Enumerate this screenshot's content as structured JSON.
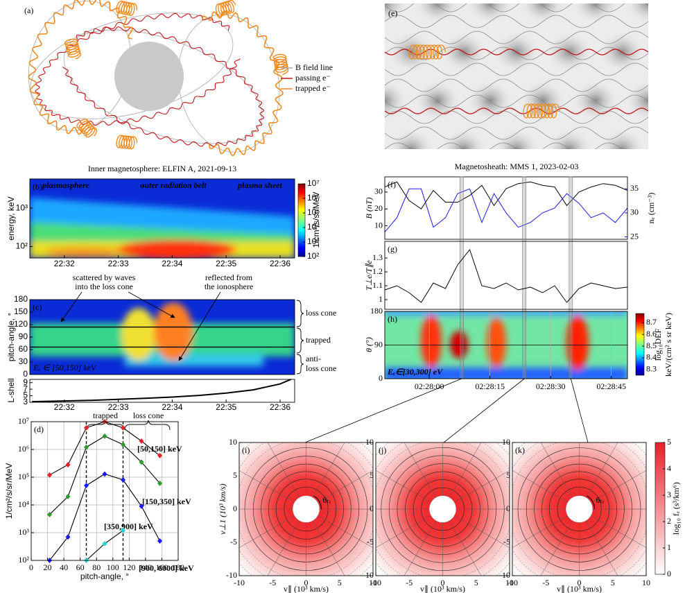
{
  "diagrams": [
    {
      "label": "(a)",
      "legend": [
        "B field line",
        "passing e⁻",
        "trapped e⁻"
      ],
      "legend_colors": [
        "#aaaaaa",
        "#c0161c",
        "#f08a1c"
      ]
    },
    {
      "label": "(e)"
    }
  ],
  "chart_data": [
    {
      "type": "heatmap",
      "label": "(b)",
      "title": "Inner magnetosphere: ELFIN A, 2021-09-13",
      "annotations": [
        "plasmasphere",
        "outer radiation belt",
        "plasma sheet"
      ],
      "ylabel": "energy, keV",
      "log_scale": true,
      "ylim": [
        50,
        5800
      ],
      "yticks": [
        {
          "value": 100,
          "label": "10²"
        },
        {
          "value": 1000,
          "label": "10³"
        }
      ],
      "xlim": [
        31.36,
        36.27
      ],
      "xticks": [
        {
          "value": 32,
          "label": "22:32"
        },
        {
          "value": 33,
          "label": "22:33"
        },
        {
          "value": 34,
          "label": "22:34"
        },
        {
          "value": 35,
          "label": "22:35"
        },
        {
          "value": 36,
          "label": "22:36"
        }
      ],
      "colorbar": {
        "label": "1/cm²/s/sr/MeV",
        "log_scale": true,
        "lim": [
          100,
          10000000
        ],
        "ticks": [
          {
            "value": 100,
            "label": "10²"
          },
          {
            "value": 1000,
            "label": "10³"
          },
          {
            "value": 10000,
            "label": "10⁴"
          },
          {
            "value": 100000,
            "label": "10⁵"
          },
          {
            "value": 1000000,
            "label": "10⁶"
          },
          {
            "value": 10000000,
            "label": "10⁷"
          }
        ]
      }
    },
    {
      "type": "heatmap",
      "label": "(c)",
      "annotations": [
        "scattered by waves",
        "into the loss cone",
        "reflected from",
        "the ionosphere"
      ],
      "brackets": [
        "loss cone",
        "trapped",
        "anti-",
        "loss cone"
      ],
      "energy_label": "Eₑ ∈ [50,150] keV",
      "ylabel": "pitch-angle, °",
      "ylim": [
        0,
        180
      ],
      "yticks": [
        0,
        30,
        60,
        90,
        120,
        150,
        180
      ],
      "lines": [
        66,
        114
      ]
    },
    {
      "type": "line",
      "ylabel": "L-shell",
      "ylim": [
        3,
        10
      ],
      "yticks": [
        3,
        5,
        7,
        9
      ],
      "color": "#000000",
      "xlim": [
        31.36,
        36.27
      ],
      "xticks": [
        {
          "value": 32,
          "label": "22:32"
        },
        {
          "value": 33,
          "label": "22:33"
        },
        {
          "value": 34,
          "label": "22:34"
        },
        {
          "value": 35,
          "label": "22:35"
        },
        {
          "value": 36,
          "label": "22:36"
        }
      ],
      "x": [
        31.4,
        32,
        32.5,
        33,
        33.5,
        34,
        34.5,
        35,
        35.5,
        36,
        36.2
      ],
      "values": [
        3.2,
        3.4,
        3.6,
        3.9,
        4.2,
        4.6,
        5.1,
        5.8,
        6.8,
        8.6,
        10
      ]
    },
    {
      "type": "line",
      "label": "(d)",
      "log_scale": true,
      "grid": true,
      "xlabel": "pitch-angle, °",
      "ylabel": "1/cm²/s/sr/MeV",
      "annotations": [
        "trapped",
        "loss cone"
      ],
      "dashed_lines": [
        67.5,
        112.5
      ],
      "xlim": [
        0,
        180
      ],
      "xticks": [
        0,
        20,
        40,
        60,
        80,
        100,
        120,
        140,
        160,
        180
      ],
      "ylim": [
        100,
        10000000
      ],
      "yticks": [
        {
          "value": 100,
          "label": "10²"
        },
        {
          "value": 1000,
          "label": "10³"
        },
        {
          "value": 10000,
          "label": "10⁴"
        },
        {
          "value": 100000,
          "label": "10⁵"
        },
        {
          "value": 1000000,
          "label": "10⁶"
        },
        {
          "value": 10000000,
          "label": "10⁷"
        }
      ],
      "x": [
        22.5,
        45,
        67.5,
        90,
        112.5,
        135,
        157.5
      ],
      "series": [
        {
          "name": "[50,150] keV",
          "color": "#e8202a",
          "values": [
            120000,
            280000,
            6000000,
            10000000,
            6000000,
            2000000,
            600000
          ]
        },
        {
          "name": "[150,350] keV",
          "color": "#2e9a2e",
          "values": [
            4500,
            20000,
            1200000,
            3000000,
            1500000,
            350000,
            60000
          ]
        },
        {
          "name": "[350,900] keV",
          "color": "#1a1aff",
          "values": [
            100,
            700,
            50000,
            130000,
            80000,
            9000,
            500
          ]
        },
        {
          "name": "[900, 6000] keV",
          "color": "#22d8d8",
          "values": [
            null,
            null,
            100,
            400,
            1200,
            null,
            null
          ]
        }
      ]
    },
    {
      "type": "line",
      "label": "(f)",
      "title": "Magnetosheath: MMS 1, 2023-02-03",
      "ylabel": "B (nT)",
      "y2label": "nₑ (cm⁻³)",
      "y2color": "#1a1ae6",
      "xlim": [
        -11,
        49
      ],
      "ylim": [
        2,
        39
      ],
      "yticks": [
        10,
        20,
        30
      ],
      "y2lim": [
        24.5,
        37.5
      ],
      "y2ticks": [
        25,
        30,
        35
      ],
      "highlights": [
        8,
        23.5,
        35
      ],
      "x": [
        -11,
        -8,
        -5,
        -2,
        1,
        4,
        7,
        10,
        13,
        16,
        19,
        22,
        25,
        28,
        31,
        34,
        37,
        40,
        43,
        46,
        49
      ],
      "series": [
        {
          "color": "#000000",
          "values": [
            33,
            36,
            25,
            20,
            31,
            24,
            24,
            28,
            34,
            22,
            32,
            35,
            36,
            34,
            33,
            22,
            30,
            33,
            35,
            34,
            31
          ]
        },
        {
          "color": "#1a1ae6",
          "axis": "y2",
          "values": [
            26,
            29,
            35,
            35,
            27,
            29,
            34,
            35,
            28,
            34,
            30,
            27,
            28,
            30,
            31,
            34,
            32,
            29,
            30,
            28,
            31
          ]
        }
      ]
    },
    {
      "type": "line",
      "label": "(g)",
      "ylabel": "T⊥e/T∥e",
      "color": "#000000",
      "xlim": [
        -11,
        49
      ],
      "ylim": [
        0.93,
        1.42
      ],
      "yticks": [
        1,
        1.1,
        1.2,
        1.3
      ],
      "x": [
        -11,
        -8,
        -5,
        -2,
        1,
        4,
        7,
        10,
        13,
        16,
        19,
        22,
        25,
        28,
        31,
        34,
        37,
        40,
        43,
        46,
        49
      ],
      "values": [
        1.07,
        1.1,
        1.05,
        0.98,
        1.12,
        1.08,
        1.25,
        1.36,
        1.1,
        1.08,
        1.12,
        1.07,
        1.09,
        1.05,
        1.1,
        0.98,
        1.08,
        1.12,
        1.1,
        1.08,
        1.09
      ]
    },
    {
      "type": "heatmap",
      "label": "(h)",
      "ylabel": "θ (°)",
      "grid": true,
      "ylim": [
        0,
        180
      ],
      "yticks": [
        0,
        90,
        180
      ],
      "xlim": [
        -11,
        49
      ],
      "xticks": [
        {
          "value": 0,
          "label": "02:28:00"
        },
        {
          "value": 15,
          "label": "02:28:15"
        },
        {
          "value": 30,
          "label": "02:28:30"
        },
        {
          "value": 45,
          "label": "02:28:45"
        }
      ],
      "energy_label": "Eₑ∈[30,300] eV",
      "colorbar": {
        "label": "log₁₀DEF",
        "label2": "keV/(cm² s sr keV)",
        "lim": [
          8.25,
          8.78
        ],
        "ticks": [
          8.3,
          8.4,
          8.5,
          8.6,
          8.7
        ]
      }
    },
    {
      "type": "polar_heatmap",
      "label": "(i)",
      "xlabel": "v∥ (10³ km/s)",
      "ylabel": "v⊥1 (10³ km/s)",
      "angle_label": "θₜᵣ",
      "xlim": [
        -10,
        10
      ],
      "ylim": [
        -10,
        10
      ],
      "xticks": [
        -10,
        -5,
        0,
        5,
        10
      ],
      "yticks": [
        -10,
        -5,
        0,
        5,
        10
      ]
    },
    {
      "type": "polar_heatmap",
      "label": "(j)",
      "xlabel": "v∥ (10³ km/s)",
      "xlim": [
        -10,
        10
      ],
      "ylim": [
        -10,
        10
      ],
      "xticks": [
        -10,
        -5,
        0,
        5,
        10
      ],
      "yticks": [
        -10,
        -5,
        0,
        5,
        10
      ]
    },
    {
      "type": "polar_heatmap",
      "label": "(k)",
      "xlabel": "v∥ (10³ km/s)",
      "angle_label": "θₜᵣ",
      "xlim": [
        -10,
        10
      ],
      "ylim": [
        -10,
        10
      ],
      "xticks": [
        -10,
        -5,
        0,
        5,
        10
      ],
      "yticks": [
        -10,
        -5,
        0,
        5,
        10
      ],
      "colorbar": {
        "label": "log₁₀ fₑ (s³/km⁶)",
        "lim": [
          0,
          5
        ],
        "ticks": [
          0,
          1,
          2,
          3,
          4,
          5
        ]
      }
    }
  ]
}
